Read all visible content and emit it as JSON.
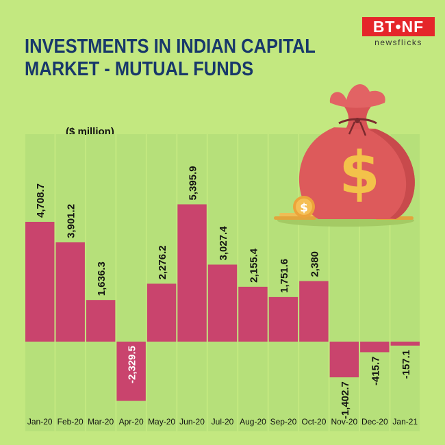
{
  "title_lines": [
    "INVESTMENTS IN INDIAN CAPITAL",
    "MARKET - MUTUAL FUNDS"
  ],
  "unit_label": "($ million)",
  "logo": {
    "mark": "BT•NF",
    "sub": "newsflicks"
  },
  "colors": {
    "background": "#c3e880",
    "column": "#b6e07a",
    "bar": "#c9446d",
    "title": "#18386a"
  },
  "chart_data": {
    "type": "bar",
    "categories": [
      "Jan-20",
      "Feb-20",
      "Mar-20",
      "Apr-20",
      "May-20",
      "Jun-20",
      "Jul-20",
      "Aug-20",
      "Sep-20",
      "Oct-20",
      "Nov-20",
      "Dec-20",
      "Jan-21"
    ],
    "values": [
      4708.7,
      3901.2,
      1636.3,
      -2329.5,
      2276.2,
      5395.9,
      3027.4,
      2155.4,
      1751.6,
      2380,
      -1402.7,
      -415.7,
      -157.1
    ],
    "value_labels": [
      "4,708.7",
      "3,901.2",
      "1,636.3",
      "-2,329.5",
      "2,276.2",
      "5,395.9",
      "3,027.4",
      "2,155.4",
      "1,751.6",
      "2,380",
      "-1,402.7",
      "-415.7",
      "-157.1"
    ],
    "ylabel": "($ million)",
    "ylim": [
      -3300,
      8000
    ],
    "grid": false,
    "legend": "none"
  },
  "decor_icons": [
    "money-bag-icon",
    "dollar-coin-icon"
  ]
}
